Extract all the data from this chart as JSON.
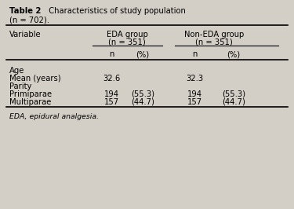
{
  "title_bold": "Table 2",
  "title_normal": "  Characteristics of study population",
  "title_line2": "(n = 702).",
  "bg_color": "#d3cfc7",
  "col1_header": "Variable",
  "col2_header_line1": "EDA group",
  "col2_header_line2": "(n = 351)",
  "col3_header_line1": "Non-EDA group",
  "col3_header_line2": "(n = 351)",
  "subheader_n1": "n",
  "subheader_pct1": "(%)",
  "subheader_n2": "n",
  "subheader_pct2": "(%)",
  "rows": [
    [
      "Age",
      "",
      "",
      "",
      ""
    ],
    [
      "Mean (years)",
      "32.6",
      "",
      "32.3",
      ""
    ],
    [
      "Parity",
      "",
      "",
      "",
      ""
    ],
    [
      "Primiparae",
      "194",
      "(55.3)",
      "194",
      "(55.3)"
    ],
    [
      "Multiparae",
      "157",
      "(44.7)",
      "157",
      "(44.7)"
    ]
  ],
  "footer": "EDA, epidural analgesia.",
  "font_size": 7.2
}
